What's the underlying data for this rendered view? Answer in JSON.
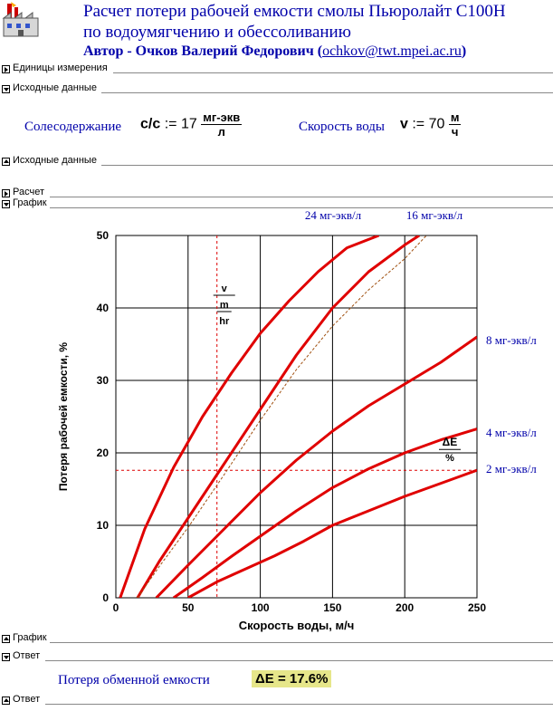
{
  "header": {
    "title_line1": "Расчет потери рабочей емкости смолы Пьюролайт С100Н",
    "title_line2": "по водоумягчению и обессоливанию",
    "author_prefix": "Автор - Очков Валерий Федорович (",
    "author_email": "ochkov@twt.mpei.ac.ru",
    "author_suffix": ")"
  },
  "regions": {
    "units": "Единицы измерения",
    "inputs_open": "Исходные данные",
    "inputs_close": "Исходные данные",
    "calc": "Расчет",
    "chart_open": "График",
    "chart_close": "График",
    "answer_open": "Ответ",
    "answer_close": "Ответ"
  },
  "inputs": {
    "salt_label": "Солесодержание",
    "salt_var": "c/c",
    "assign": ":=",
    "salt_value": "17",
    "salt_unit_num": "мг-экв",
    "salt_unit_den": "л",
    "speed_label": "Скорость воды",
    "speed_var": "v",
    "speed_value": "70",
    "speed_unit_num": "м",
    "speed_unit_den": "ч"
  },
  "answer": {
    "label": "Потеря обменной емкости",
    "value": "ΔE = 17.6%"
  },
  "chart_data": {
    "type": "line",
    "xlabel": "Скорость воды, м/ч",
    "ylabel": "Потеря рабочей емкости, %",
    "xlim": [
      0,
      250
    ],
    "ylim": [
      0,
      50
    ],
    "x_ticks": [
      "0",
      "50",
      "100",
      "150",
      "200",
      "250"
    ],
    "y_ticks": [
      "0",
      "10",
      "20",
      "30",
      "40",
      "50"
    ],
    "grid": true,
    "marker_x_label": {
      "num": "v",
      "mid": "m",
      "den": "hr"
    },
    "marker_y_label": {
      "num": "ΔE",
      "den": "%"
    },
    "marker_x": 70,
    "marker_y": 17.6,
    "colors": {
      "series": "#e00000",
      "interp": "#a05010",
      "marker": "#dd0000"
    },
    "series": [
      {
        "name": "24 мг-экв/л",
        "x": [
          3,
          20,
          40,
          60,
          80,
          100,
          120,
          140,
          160,
          182
        ],
        "y": [
          0,
          9.5,
          18,
          25,
          31,
          36.5,
          41,
          45,
          48.3,
          50
        ]
      },
      {
        "name": "16 мг-экв/л",
        "x": [
          15,
          30,
          50,
          75,
          100,
          125,
          150,
          175,
          200,
          210
        ],
        "y": [
          0,
          5,
          11,
          18.5,
          26,
          33.5,
          40,
          45,
          48.7,
          50
        ]
      },
      {
        "name": "8 мг-экв/л",
        "x": [
          28,
          50,
          75,
          100,
          125,
          150,
          175,
          200,
          225,
          250
        ],
        "y": [
          0,
          4.5,
          9.5,
          14.5,
          19,
          23,
          26.5,
          29.5,
          32.5,
          36
        ]
      },
      {
        "name": "4 мг-экв/л",
        "x": [
          40,
          60,
          80,
          100,
          125,
          150,
          175,
          200,
          225,
          250
        ],
        "y": [
          0,
          2.8,
          5.7,
          8.5,
          12,
          15.2,
          17.8,
          20,
          21.8,
          23.3
        ]
      },
      {
        "name": "2 мг-экв/л",
        "x": [
          50,
          70,
          90,
          110,
          130,
          150,
          175,
          200,
          225,
          250
        ],
        "y": [
          0,
          2.2,
          4,
          5.8,
          7.8,
          10,
          12,
          14,
          15.8,
          17.6
        ]
      },
      {
        "name": "",
        "dashed": true,
        "x": [
          15,
          30,
          50,
          75,
          100,
          125,
          150,
          175,
          200,
          215
        ],
        "y": [
          0,
          4.3,
          9.7,
          17,
          24.5,
          31.5,
          37.5,
          42.5,
          46.8,
          50
        ]
      }
    ]
  }
}
